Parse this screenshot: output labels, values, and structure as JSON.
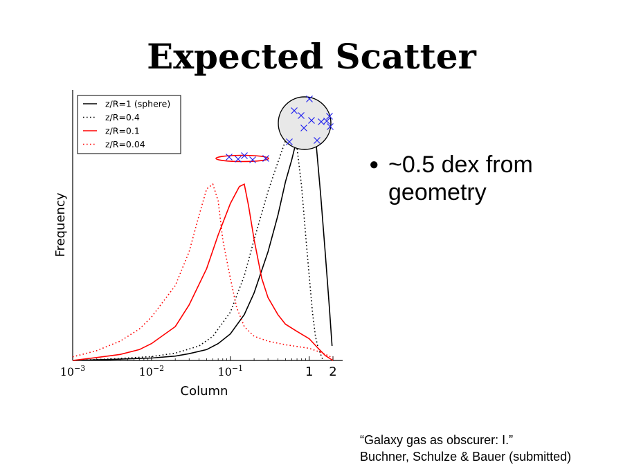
{
  "slide": {
    "title": "Expected Scatter",
    "bullet": "~0.5 dex from geometry",
    "citation_line1": "“Galaxy gas as obscurer: I.”",
    "citation_line2": "Buchner, Schulze & Bauer (submitted)"
  },
  "colors": {
    "black": "#000000",
    "red": "#ff0000",
    "blue": "#2020ee",
    "sphere_fill": "#e8e8e8"
  },
  "chart_data": {
    "type": "line",
    "xlabel": "Column",
    "ylabel": "Frequency",
    "x_scale": "log",
    "xlim": [
      0.001,
      2
    ],
    "ylim": [
      0,
      1.12
    ],
    "y_ticks_shown": false,
    "xticks": [
      {
        "value": 0.001,
        "base": "10",
        "exp": "−3"
      },
      {
        "value": 0.01,
        "base": "10",
        "exp": "−2"
      },
      {
        "value": 0.1,
        "base": "10",
        "exp": "−1"
      },
      {
        "value": 1,
        "label": "1"
      },
      {
        "value": 2,
        "label": "2"
      }
    ],
    "legend": "top-left",
    "series": [
      {
        "name": "z/R=1 (sphere)",
        "color": "#000000",
        "style": "solid",
        "points": [
          [
            0.001,
            0.0
          ],
          [
            0.003,
            0.004
          ],
          [
            0.01,
            0.01
          ],
          [
            0.02,
            0.018
          ],
          [
            0.03,
            0.028
          ],
          [
            0.05,
            0.045
          ],
          [
            0.07,
            0.07
          ],
          [
            0.1,
            0.11
          ],
          [
            0.15,
            0.19
          ],
          [
            0.2,
            0.28
          ],
          [
            0.3,
            0.45
          ],
          [
            0.4,
            0.6
          ],
          [
            0.5,
            0.74
          ],
          [
            0.6,
            0.83
          ],
          [
            0.7,
            0.92
          ],
          [
            0.8,
            0.99
          ],
          [
            0.9,
            1.04
          ],
          [
            1.0,
            1.06
          ],
          [
            1.1,
            1.02
          ],
          [
            1.2,
            0.93
          ],
          [
            1.4,
            0.68
          ],
          [
            1.6,
            0.44
          ],
          [
            1.8,
            0.22
          ],
          [
            1.95,
            0.06
          ]
        ]
      },
      {
        "name": "z/R=0.4",
        "color": "#000000",
        "style": "dotted",
        "points": [
          [
            0.001,
            0.0
          ],
          [
            0.003,
            0.006
          ],
          [
            0.01,
            0.016
          ],
          [
            0.02,
            0.03
          ],
          [
            0.04,
            0.06
          ],
          [
            0.06,
            0.1
          ],
          [
            0.1,
            0.2
          ],
          [
            0.15,
            0.35
          ],
          [
            0.2,
            0.5
          ],
          [
            0.3,
            0.7
          ],
          [
            0.4,
            0.82
          ],
          [
            0.5,
            0.91
          ],
          [
            0.6,
            0.94
          ],
          [
            0.7,
            0.88
          ],
          [
            0.8,
            0.72
          ],
          [
            0.9,
            0.52
          ],
          [
            1.0,
            0.35
          ],
          [
            1.1,
            0.2
          ],
          [
            1.2,
            0.1
          ],
          [
            1.3,
            0.05
          ],
          [
            1.5,
            0.0
          ]
        ]
      },
      {
        "name": "z/R=0.1",
        "color": "#ff0000",
        "style": "solid",
        "points": [
          [
            0.001,
            0.0
          ],
          [
            0.002,
            0.012
          ],
          [
            0.004,
            0.025
          ],
          [
            0.007,
            0.045
          ],
          [
            0.01,
            0.07
          ],
          [
            0.02,
            0.14
          ],
          [
            0.03,
            0.23
          ],
          [
            0.05,
            0.38
          ],
          [
            0.07,
            0.52
          ],
          [
            0.1,
            0.65
          ],
          [
            0.13,
            0.72
          ],
          [
            0.15,
            0.73
          ],
          [
            0.17,
            0.64
          ],
          [
            0.2,
            0.5
          ],
          [
            0.25,
            0.34
          ],
          [
            0.3,
            0.26
          ],
          [
            0.4,
            0.19
          ],
          [
            0.5,
            0.15
          ],
          [
            0.7,
            0.12
          ],
          [
            1.0,
            0.09
          ],
          [
            1.3,
            0.05
          ],
          [
            1.6,
            0.02
          ],
          [
            2.0,
            0.0
          ]
        ]
      },
      {
        "name": "z/R=0.04",
        "color": "#ff0000",
        "style": "dotted",
        "points": [
          [
            0.001,
            0.015
          ],
          [
            0.002,
            0.04
          ],
          [
            0.004,
            0.08
          ],
          [
            0.007,
            0.13
          ],
          [
            0.01,
            0.18
          ],
          [
            0.02,
            0.31
          ],
          [
            0.03,
            0.45
          ],
          [
            0.04,
            0.6
          ],
          [
            0.05,
            0.71
          ],
          [
            0.06,
            0.73
          ],
          [
            0.07,
            0.66
          ],
          [
            0.08,
            0.5
          ],
          [
            0.1,
            0.34
          ],
          [
            0.12,
            0.22
          ],
          [
            0.15,
            0.14
          ],
          [
            0.2,
            0.1
          ],
          [
            0.3,
            0.08
          ],
          [
            0.5,
            0.065
          ],
          [
            1.0,
            0.05
          ],
          [
            1.5,
            0.03
          ],
          [
            2.0,
            0.01
          ]
        ]
      }
    ]
  }
}
